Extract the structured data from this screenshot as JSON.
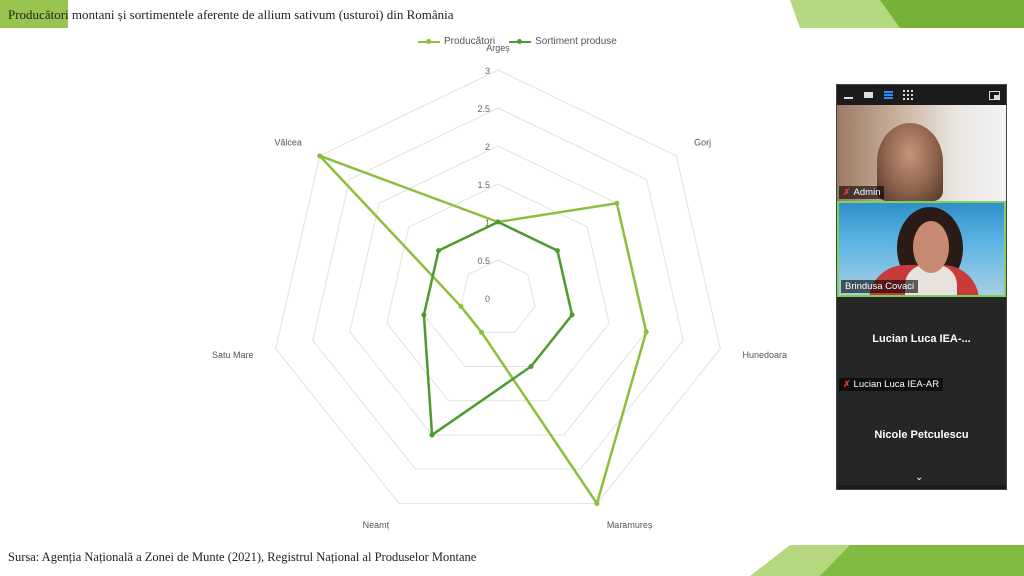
{
  "slide": {
    "title": "Producători montani și sortimentele aferente de allium sativum (usturoi) din România",
    "source": "Sursa: Agenția Națională a Zonei de Munte (2021), Registrul Național al Produselor Montane"
  },
  "chart_data": {
    "type": "radar",
    "categories": [
      "Argeș",
      "Gorj",
      "Hunedoara",
      "Maramureș",
      "Neamț",
      "Satu Mare",
      "Vâlcea"
    ],
    "r_ticks": [
      "0",
      "0.5",
      "1",
      "1.5",
      "2",
      "2.5",
      "3"
    ],
    "rlim": [
      0,
      3
    ],
    "grid": true,
    "legend_position": "top-center",
    "series": [
      {
        "name": "Producători",
        "color": "#8dbe3c",
        "values": [
          1,
          2,
          2,
          3,
          0.5,
          0.5,
          3
        ]
      },
      {
        "name": "Sortiment produse",
        "color": "#4f9a2e",
        "values": [
          1,
          1,
          1,
          1,
          2,
          1,
          1
        ]
      }
    ]
  },
  "zoom": {
    "toolbar_icons": [
      "minimize-icon",
      "window-icon",
      "speaker-view-icon",
      "gallery-view-icon",
      "layout-icon"
    ],
    "participants": [
      {
        "name": "Admin",
        "muted": true
      },
      {
        "name": "Brindusa Covaci",
        "muted": false
      },
      {
        "display": "Lucian Luca IEA-...",
        "name": "Lucian Luca IEA-AR",
        "muted": true
      },
      {
        "display": "Nicole Petculescu",
        "name": "Nicole Petculescu",
        "muted": true
      }
    ]
  },
  "colors": {
    "accent_green": "#8dbe3c",
    "dark_green": "#4f9a2e"
  }
}
